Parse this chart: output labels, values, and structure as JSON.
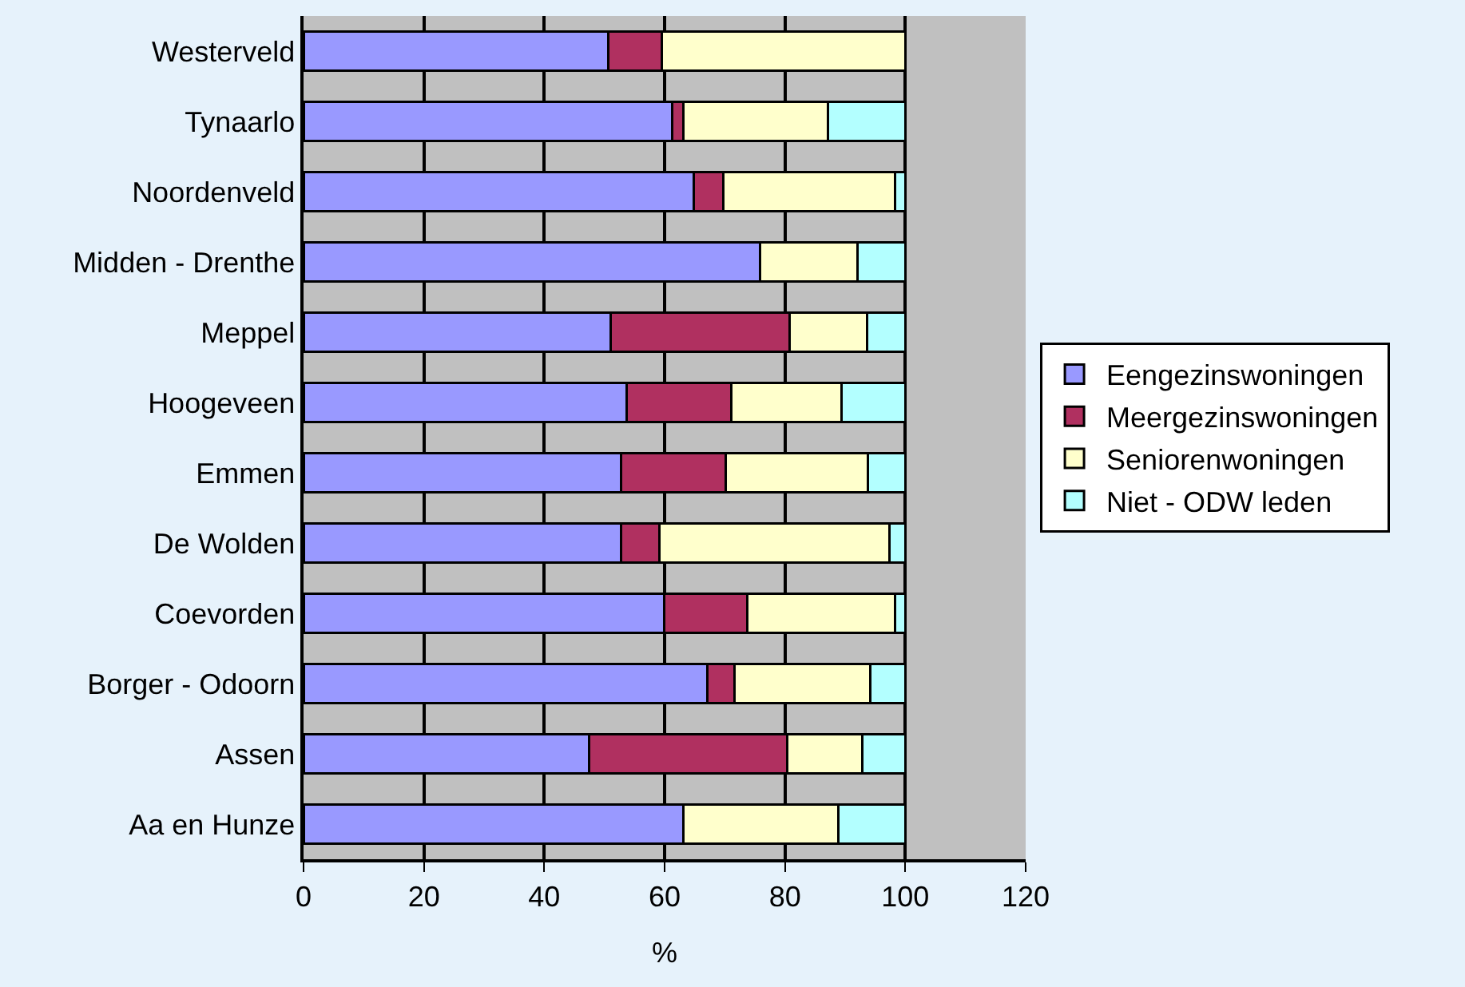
{
  "chart_data": {
    "type": "bar",
    "orientation": "horizontal",
    "stacked": true,
    "xlabel": "%",
    "categories": [
      "Westerveld",
      "Tynaarlo",
      "Noordenveld",
      "Midden - Drenthe",
      "Meppel",
      "Hoogeveen",
      "Emmen",
      "De Wolden",
      "Coevorden",
      "Borger - Odoorn",
      "Assen",
      "Aa en Hunze"
    ],
    "series": [
      {
        "name": "Eengezinswoningen",
        "color": "#9999ff",
        "values": [
          50.6,
          61.2,
          64.8,
          75.9,
          51.1,
          53.7,
          52.8,
          52.8,
          59.9,
          67.1,
          47.5,
          63.1
        ]
      },
      {
        "name": "Meergezinswoningen",
        "color": "#b03060",
        "values": [
          8.9,
          1.9,
          5.0,
          null,
          29.7,
          17.4,
          17.4,
          6.3,
          13.8,
          4.5,
          32.9,
          null
        ]
      },
      {
        "name": "Seniorenwoningen",
        "color": "#ffffcc",
        "values": [
          40.5,
          24.0,
          28.5,
          16.1,
          12.9,
          18.3,
          23.6,
          38.2,
          24.6,
          22.6,
          12.5,
          25.8
        ]
      },
      {
        "name": "Niet - ODW leden",
        "color": "#b3ffff",
        "values": [
          null,
          12.9,
          1.7,
          8.0,
          6.3,
          10.6,
          6.2,
          2.7,
          1.7,
          5.8,
          7.1,
          11.1
        ]
      }
    ],
    "xlim": [
      0,
      120
    ],
    "xticks": [
      0,
      20,
      40,
      60,
      80,
      100,
      120
    ],
    "grid": "x",
    "legend": "right"
  }
}
